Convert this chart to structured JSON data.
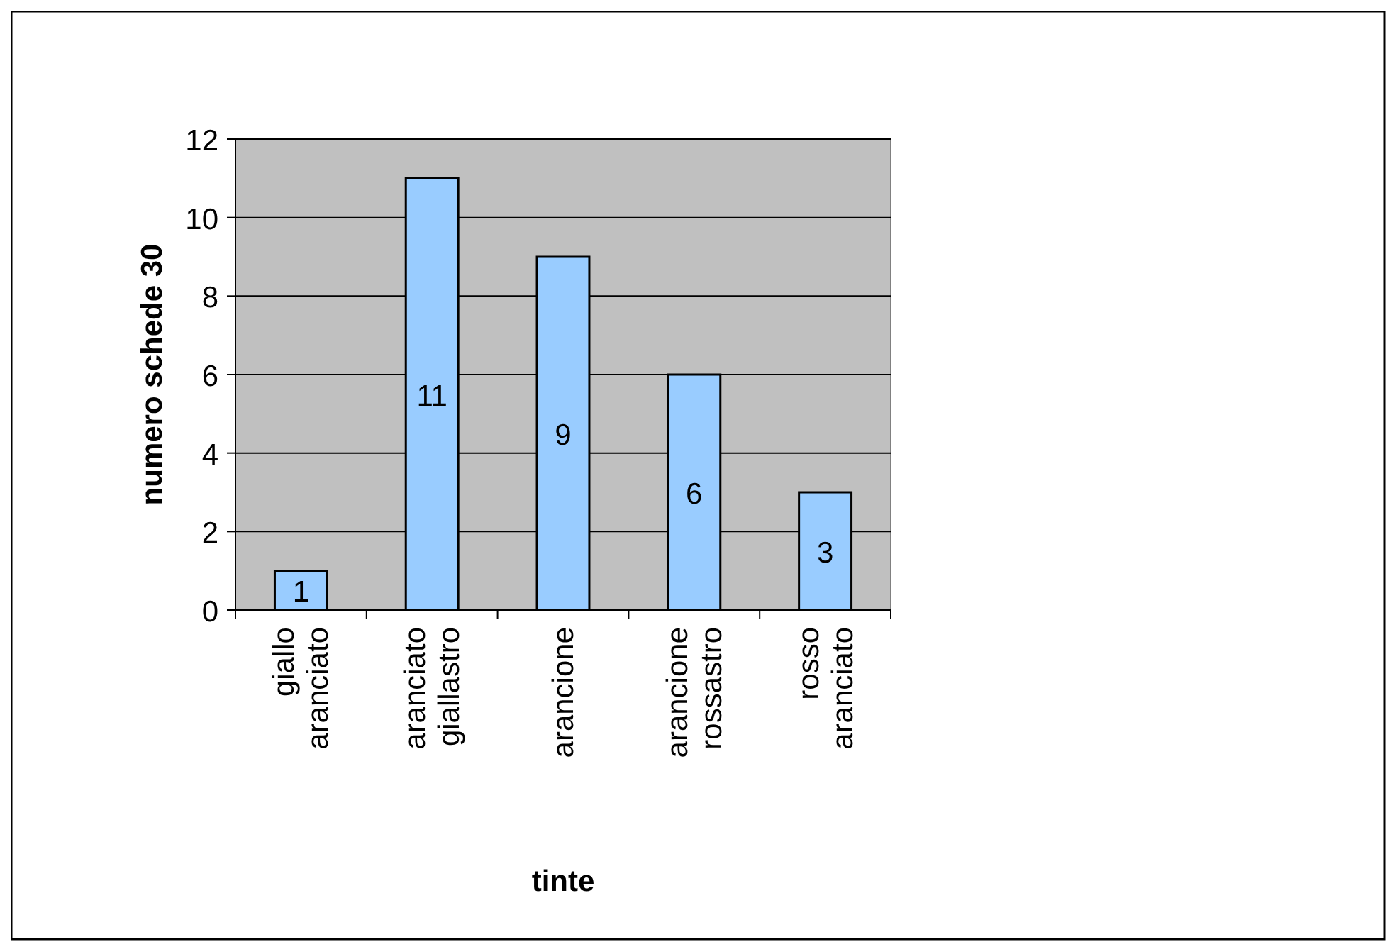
{
  "chart_data": {
    "type": "bar",
    "xlabel": "tinte",
    "ylabel": "numero schede 30",
    "categories": [
      "giallo aranciato",
      "aranciato giallastro",
      "arancione",
      "arancione rossastro",
      "rosso aranciato"
    ],
    "values": [
      1,
      11,
      9,
      6,
      3
    ],
    "color": "#99ccff",
    "ylim": [
      0,
      12
    ],
    "yticks": [
      0,
      2,
      4,
      6,
      8,
      10,
      12
    ],
    "grid": "y",
    "data_labels": true
  }
}
